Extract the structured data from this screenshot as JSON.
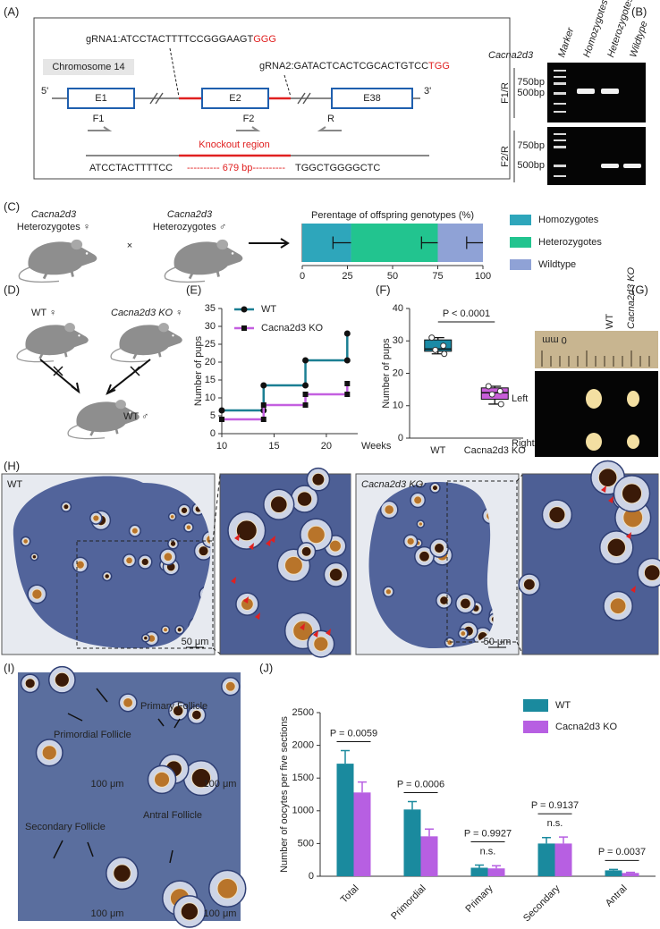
{
  "panel_labels": [
    "(A)",
    "(B)",
    "(C)",
    "(D)",
    "(E)",
    "(F)",
    "(G)",
    "(H)",
    "(I)",
    "(J)"
  ],
  "panel_a": {
    "grna1": "gRNA1:ATCCTACTTTTCCGGGAAGT",
    "grna1_pam": "GGG",
    "grna2": "gRNA2:GATACTCACTCGCACTGTCC",
    "grna2_pam": "TGG",
    "chromosome": "Chromosome 14",
    "end5": "5'",
    "end3": "3'",
    "exons": [
      "E1",
      "E2",
      "E38"
    ],
    "primers": [
      "F1",
      "F2",
      "R"
    ],
    "region": "Knockout region",
    "seq_left": "ATCCTACTTTTCC",
    "seq_mid": "---------- 679 bp----------",
    "seq_right": "TGGCTGGGGCTC"
  },
  "panel_b": {
    "gene": "Cacna2d3",
    "lanes": [
      "Marker",
      "Homozygotes",
      "Heterozygotes",
      "Wildtype"
    ],
    "rows": [
      {
        "label": "F1/R",
        "markers": [
          "750bp",
          "500bp"
        ]
      },
      {
        "label": "F2/R",
        "markers": [
          "750bp",
          "500bp"
        ]
      }
    ]
  },
  "panel_c": {
    "parents": [
      {
        "gene": "Cacna2d3",
        "label": "Heterozygotes ♀"
      },
      {
        "gene": "Cacna2d3",
        "label": "Heterozygotes ♂"
      }
    ],
    "cross": "×"
  },
  "panel_d": {
    "female1": "WT ♀",
    "female2": "Cacna2d3 KO ♀",
    "male": "WT ♂"
  },
  "panel_g": {
    "columns": [
      "WT",
      "Cacna2d3 KO"
    ],
    "ruler": "0 mm",
    "rows": [
      "Left",
      "Right"
    ]
  },
  "panel_h": {
    "labels": [
      "WT",
      "Cacna2d3 KO"
    ],
    "scales": [
      "50 μm",
      "50 μm"
    ]
  },
  "panel_i": {
    "labels": [
      "Primordial Follicle",
      "Primary Follicle",
      "Secondary Follicle",
      "Antral Follicle"
    ],
    "scales": [
      "100 μm",
      "100 μm",
      "100 μm",
      "100 μm"
    ]
  },
  "chart_data": [
    {
      "type": "bar",
      "orientation": "horizontal",
      "stacked": true,
      "title": "Perentage of offspring genotypes (%)",
      "series": [
        {
          "name": "Homozygotes",
          "color": "#2ea6bb",
          "values": [
            27
          ],
          "errors": [
            10
          ]
        },
        {
          "name": "Heterozygotes",
          "color": "#22c48f",
          "values": [
            48
          ],
          "errors": [
            9
          ]
        },
        {
          "name": "Wildtype",
          "color": "#8fa2d6",
          "values": [
            25
          ],
          "errors": [
            9
          ]
        }
      ],
      "xlim": [
        0,
        100
      ],
      "xticks": [
        0,
        25,
        50,
        75,
        100
      ]
    },
    {
      "type": "line",
      "step": true,
      "x_label": "Weeks",
      "y_label": "Number of pups",
      "x": [
        10,
        14,
        14,
        18,
        18,
        22,
        22
      ],
      "series": [
        {
          "name": "WT",
          "color": "#1b7f93",
          "marker": "circle",
          "values": [
            6.5,
            6.5,
            13.5,
            13.5,
            20.5,
            20.5,
            28
          ]
        },
        {
          "name": "Cacna2d3 KO",
          "color": "#c45fe0",
          "marker": "square",
          "values": [
            4,
            4,
            8,
            8,
            11,
            11,
            14
          ]
        }
      ],
      "xlim": [
        10,
        23
      ],
      "xticks": [
        10,
        15,
        20
      ],
      "ylim": [
        0,
        35
      ],
      "yticks": [
        0,
        5,
        10,
        15,
        20,
        25,
        30,
        35
      ]
    },
    {
      "type": "box",
      "y_label": "Number of pups",
      "annotation": "P < 0.0001",
      "categories": [
        "WT",
        "Cacna2d3 KO"
      ],
      "colors": [
        "#1b8aa5",
        "#c85ed8"
      ],
      "boxes": [
        {
          "min": 26,
          "q1": 26.8,
          "median": 27.5,
          "q3": 30.3,
          "max": 31,
          "points": [
            31,
            28.5,
            27.2,
            26
          ]
        },
        {
          "min": 10.5,
          "q1": 12,
          "median": 14,
          "q3": 15.5,
          "max": 16,
          "points": [
            16,
            14.5,
            13.5,
            10.5
          ]
        }
      ],
      "ylim": [
        0,
        40
      ],
      "yticks": [
        0,
        10,
        20,
        30,
        40
      ]
    },
    {
      "type": "bar",
      "orientation": "vertical",
      "y_label": "Number of oocytes per five sections",
      "categories": [
        "Total",
        "Primordial",
        "Primary",
        "Secondary",
        "Antral"
      ],
      "series": [
        {
          "name": "WT",
          "color": "#1a8a9e",
          "values": [
            1720,
            1020,
            130,
            500,
            90
          ],
          "errors": [
            200,
            120,
            40,
            90,
            15
          ]
        },
        {
          "name": "Cacna2d3 KO",
          "color": "#b75fe2",
          "values": [
            1280,
            610,
            120,
            500,
            50
          ],
          "errors": [
            160,
            110,
            40,
            100,
            10
          ]
        }
      ],
      "p_values": [
        "P = 0.0059",
        "P = 0.0006",
        "P = 0.9927",
        "P = 0.9137",
        "P = 0.0037"
      ],
      "significance": [
        null,
        null,
        "n.s.",
        "n.s.",
        null
      ],
      "ylim": [
        0,
        2500
      ],
      "yticks": [
        0,
        500,
        1000,
        1500,
        2000,
        2500
      ]
    }
  ]
}
